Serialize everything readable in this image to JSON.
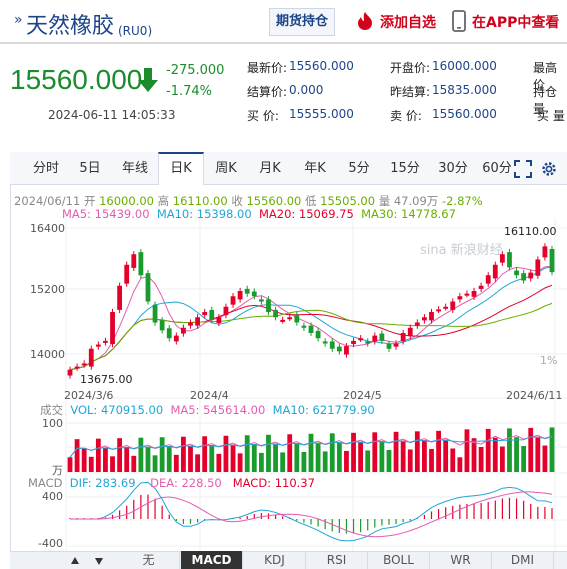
{
  "header": {
    "title": "天然橡胶",
    "code": "(RU0)",
    "holding_button": "期货持仓",
    "favorite_button": "添加自选",
    "app_button": "在APP中查看"
  },
  "quote": {
    "price": "15560.000",
    "change": "-275.000",
    "change_pct": "-1.74%",
    "datetime": "2024-06-11 14:05:33",
    "fields": [
      {
        "label": "最新价:",
        "value": "15560.000"
      },
      {
        "label": "开盘价:",
        "value": "16000.000"
      },
      {
        "label": "最高价",
        "value": ""
      },
      {
        "label": "结算价:",
        "value": "0.000"
      },
      {
        "label": "昨结算:",
        "value": "15835.000"
      },
      {
        "label": "持仓量",
        "value": ""
      },
      {
        "label": "买  价:",
        "value": "15555.000"
      },
      {
        "label": "卖  价:",
        "value": "15560.000"
      },
      {
        "label": "买  量",
        "value": ""
      }
    ]
  },
  "chart_tabs": [
    "分时",
    "5日",
    "年线",
    "日K",
    "周K",
    "月K",
    "年K",
    "5分",
    "15分",
    "30分",
    "60分"
  ],
  "active_tab": "日K",
  "info": {
    "date": "2024/06/11",
    "open_label": "开",
    "open": "16000.00",
    "high_label": "高",
    "high": "16110.00",
    "close_label": "收",
    "close": "15560.00",
    "low_label": "低",
    "low": "15505.00",
    "vol_label": "量",
    "vol": "47.09万",
    "pct": "-2.87%"
  },
  "ma_line": {
    "ma5": "MA5: 15439.00",
    "ma10": "MA10: 15398.00",
    "ma20": "MA20: 15069.75",
    "ma30": "MA30: 14778.67"
  },
  "price_axis": [
    "16400",
    "15200",
    "14000"
  ],
  "price_axis_right": "1%",
  "date_axis": [
    "2024/3/6",
    "2024/4",
    "2024/5",
    "2024/6/11"
  ],
  "max_label": "16110.00",
  "min_label": "13675.00",
  "volume": {
    "title": "成交",
    "vol": "VOL: 470915.00",
    "ma5": "MA5: 545614.00",
    "ma10": "MA10: 621779.90",
    "axis_top": "100",
    "axis_unit": "万"
  },
  "macd": {
    "title": "MACD",
    "dif": "DIF: 283.69",
    "dea": "DEA: 228.50",
    "macd": "MACD: 110.37",
    "axis_top": "400",
    "axis_bottom": "-400"
  },
  "watermark": "sina 新浪财经",
  "bottom_tabs": [
    "无",
    "MACD",
    "KDJ",
    "RSI",
    "BOLL",
    "WR",
    "DMI"
  ],
  "bottom_active": "MACD",
  "colors": {
    "up": "#e3002b",
    "down": "#1a9b2e",
    "brand": "#1c4587"
  }
}
